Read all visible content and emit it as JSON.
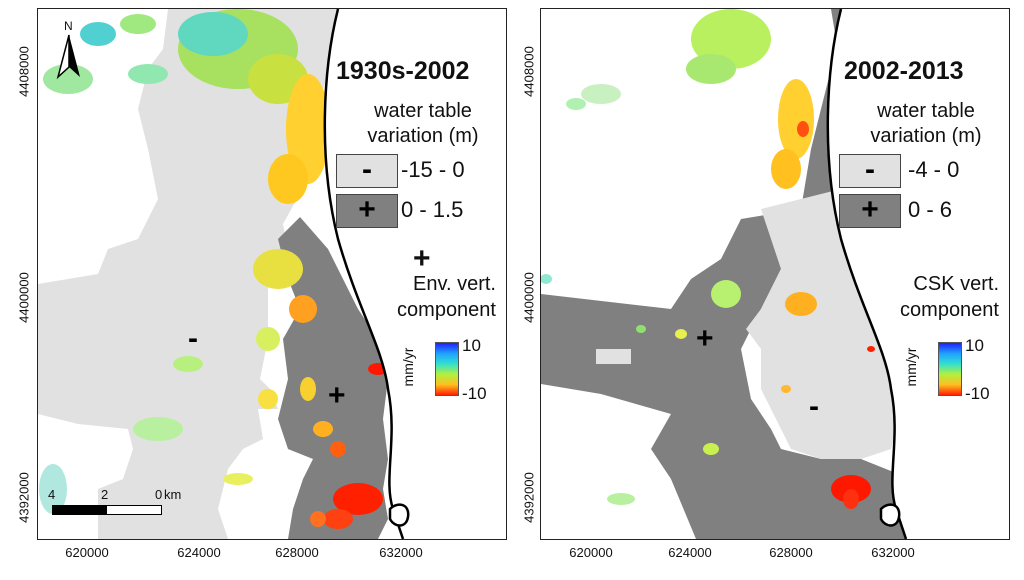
{
  "axes": {
    "y_ticks": [
      "4408000",
      "4400000",
      "4392000"
    ],
    "x_ticks": [
      "620000",
      "624000",
      "628000",
      "632000"
    ]
  },
  "panels": [
    {
      "title": "1930s-2002",
      "legend_title_line1": "water table",
      "legend_title_line2": "variation (m)",
      "negative_range": "-15 - 0",
      "positive_range": "0 - 1.5",
      "component_line1": "Env. vert.",
      "component_line2": "component",
      "colorbar_unit": "mm/yr",
      "colorbar_max": "10",
      "colorbar_min": "-10",
      "negative_color": "#e1e1e1",
      "positive_color": "#808080"
    },
    {
      "title": "2002-2013",
      "legend_title_line1": "water table",
      "legend_title_line2": "variation (m)",
      "negative_range": "-4 - 0",
      "positive_range": "0 - 6",
      "component_line1": "CSK vert.",
      "component_line2": "component",
      "colorbar_unit": "mm/yr",
      "colorbar_max": "10",
      "colorbar_min": "-10",
      "negative_color": "#e1e1e1",
      "positive_color": "#808080"
    }
  ],
  "north_arrow": {
    "label": "N"
  },
  "scale_bar": {
    "labels": [
      "4",
      "2",
      "0"
    ],
    "unit": "km"
  },
  "symbols": {
    "minus": "-",
    "plus": "+"
  }
}
